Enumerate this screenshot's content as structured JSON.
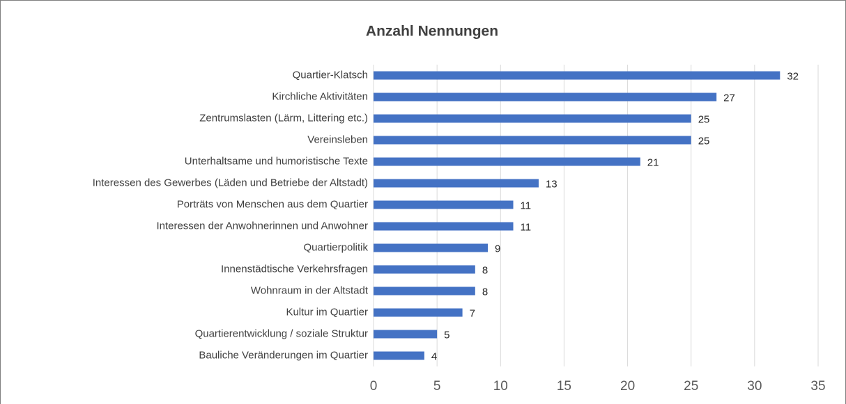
{
  "chart_data": {
    "type": "bar",
    "orientation": "horizontal",
    "title": "Anzahl Nennungen",
    "categories": [
      "Quartier-Klatsch",
      "Kirchliche Aktivitäten",
      "Zentrumslasten (Lärm, Littering etc.)",
      "Vereinsleben",
      "Unterhaltsame und humoristische Texte",
      "Interessen des Gewerbes (Läden und Betriebe der Altstadt)",
      "Porträts von Menschen aus dem Quartier",
      "Interessen der Anwohnerinnen und Anwohner",
      "Quartierpolitik",
      "Innenstädtische Verkehrsfragen",
      "Wohnraum in der Altstadt",
      "Kultur im Quartier",
      "Quartierentwicklung / soziale Struktur",
      "Bauliche Veränderungen im Quartier"
    ],
    "values": [
      32,
      27,
      25,
      25,
      21,
      13,
      11,
      11,
      9,
      8,
      8,
      7,
      5,
      4
    ],
    "color": "#4472c4",
    "xlim": [
      0,
      35
    ],
    "xticks": [
      0,
      5,
      10,
      15,
      20,
      25,
      30,
      35
    ],
    "grid": true
  }
}
